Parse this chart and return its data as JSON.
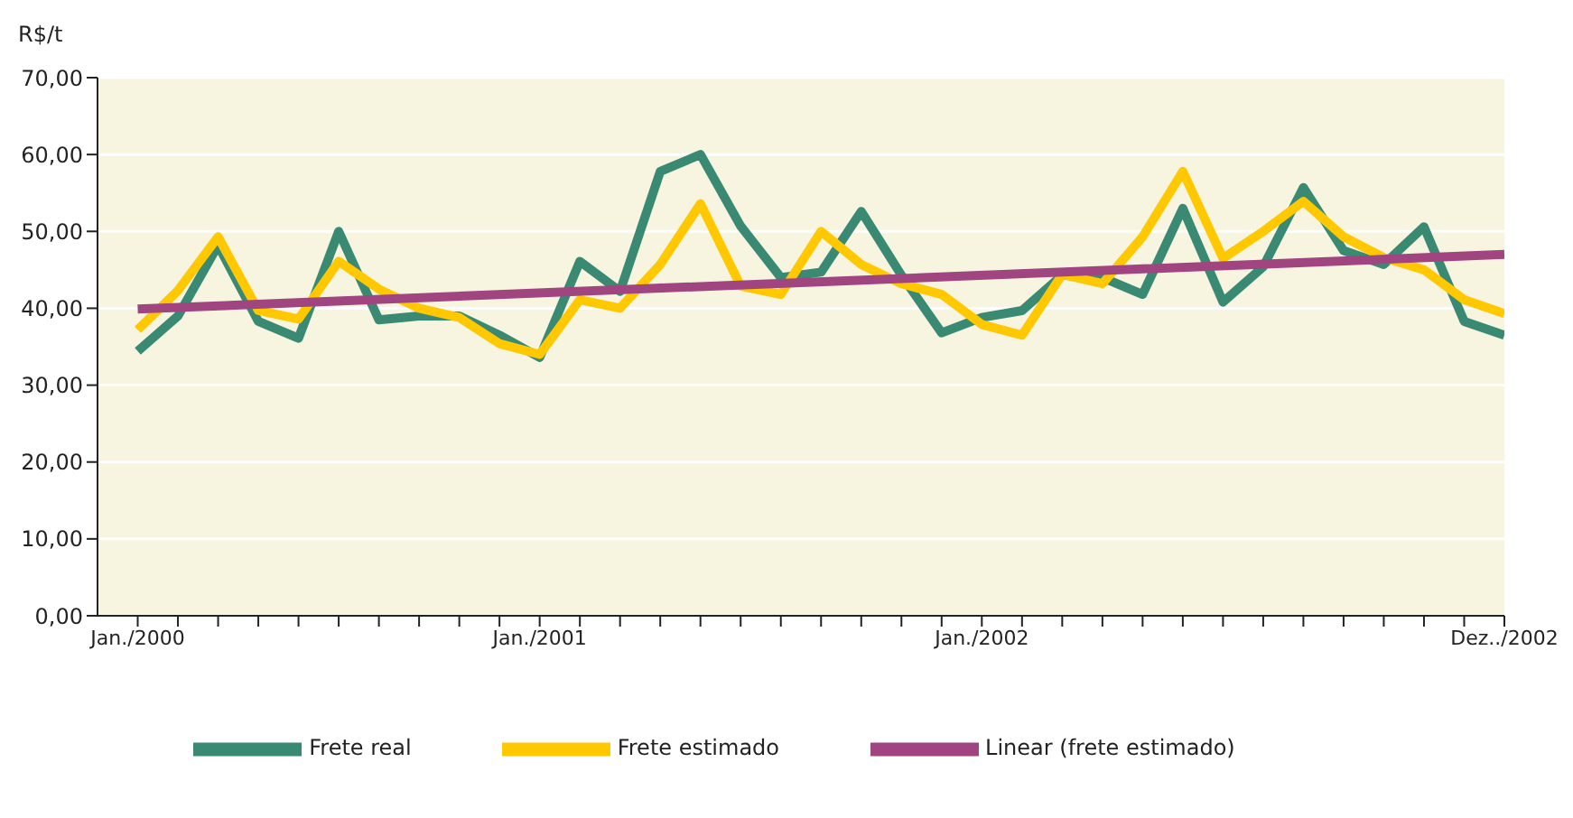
{
  "chart_data": {
    "type": "line",
    "ylabel": "R$/t",
    "categories": [
      "Jan./2000",
      null,
      null,
      null,
      null,
      null,
      null,
      null,
      null,
      null,
      "Jan./2001",
      null,
      null,
      null,
      null,
      null,
      null,
      null,
      null,
      null,
      null,
      "Jan./2002",
      null,
      null,
      null,
      null,
      null,
      null,
      null,
      null,
      null,
      null,
      null,
      null,
      "Dez../2002"
    ],
    "series": [
      {
        "name": "Frete real",
        "color": "#3a8a73",
        "values": [
          34.4,
          39.0,
          48.2,
          38.3,
          36.1,
          50.0,
          38.5,
          39.0,
          39.0,
          36.5,
          33.6,
          46.1,
          42.2,
          57.8,
          60.0,
          50.7,
          44.0,
          44.7,
          52.6,
          44.3,
          36.8,
          38.8,
          39.7,
          44.3,
          44.0,
          41.8,
          53.0,
          40.8,
          45.4,
          55.7,
          47.5,
          45.7,
          50.6,
          38.3,
          36.5
        ]
      },
      {
        "name": "Frete estimado",
        "color": "#ffc800",
        "values": [
          37.2,
          42.3,
          49.3,
          39.7,
          38.6,
          46.1,
          42.5,
          40.0,
          38.8,
          35.4,
          34.0,
          41.1,
          40.0,
          45.7,
          53.6,
          42.9,
          41.8,
          50.0,
          45.7,
          43.2,
          41.8,
          37.9,
          36.5,
          44.4,
          43.2,
          49.3,
          57.8,
          46.5,
          50.0,
          53.9,
          49.3,
          46.6,
          45.0,
          41.1,
          39.3
        ]
      },
      {
        "name": "Linear (frete estimado)",
        "color": "#a0457f",
        "values": [
          39.9,
          null,
          null,
          null,
          null,
          null,
          null,
          null,
          null,
          null,
          null,
          null,
          null,
          null,
          null,
          null,
          null,
          null,
          null,
          null,
          null,
          null,
          null,
          null,
          null,
          null,
          null,
          null,
          null,
          null,
          null,
          null,
          null,
          null,
          47.0
        ]
      }
    ],
    "ylim": [
      0,
      70
    ],
    "yticks": [
      {
        "value": 0,
        "label": "0,00"
      },
      {
        "value": 10,
        "label": "10,00"
      },
      {
        "value": 20,
        "label": "20,00"
      },
      {
        "value": 30,
        "label": "30,00"
      },
      {
        "value": 40,
        "label": "40,00"
      },
      {
        "value": 50,
        "label": "50,00"
      },
      {
        "value": 60,
        "label": "60,00"
      },
      {
        "value": 70,
        "label": "70,00"
      }
    ],
    "grid": "y",
    "legend": "bottom",
    "marker": "none",
    "line_style": "solid"
  }
}
